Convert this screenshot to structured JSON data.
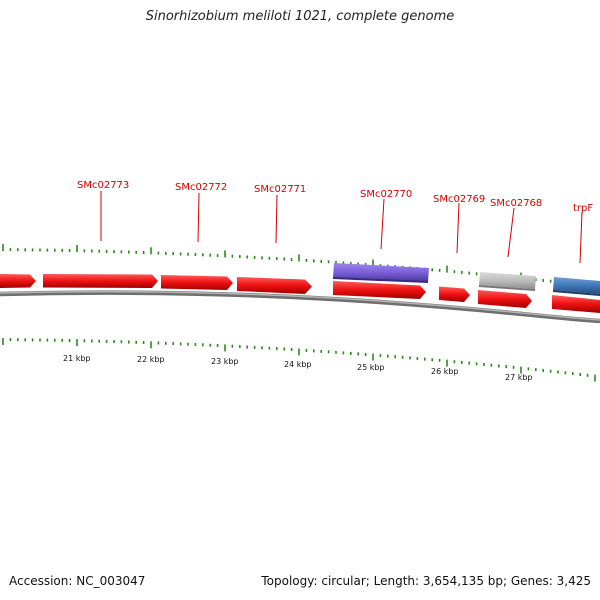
{
  "title": "Sinorhizobium meliloti 1021, complete genome",
  "footer": {
    "accession": "Accession: NC_003047",
    "summary": "Topology: circular; Length: 3,654,135 bp; Genes: 3,425"
  },
  "colors": {
    "gene_red": "#ee1111",
    "gene_purple": "#7a5fd8",
    "gene_gray": "#bdbdbd",
    "gene_blue": "#3f78b8",
    "label_red": "#d40000",
    "tick_green": "#2a8a1a",
    "backbone": "#8a8a8a"
  },
  "gene_labels": [
    {
      "id": "SMc02773",
      "text": "SMc02773"
    },
    {
      "id": "SMc02772",
      "text": "SMc02772"
    },
    {
      "id": "SMc02771",
      "text": "SMc02771"
    },
    {
      "id": "SMc02770",
      "text": "SMc02770"
    },
    {
      "id": "SMc02769",
      "text": "SMc02769"
    },
    {
      "id": "SMc02768",
      "text": "SMc02768"
    },
    {
      "id": "trpF",
      "text": "trpF"
    }
  ],
  "kbp_ticks": [
    "21 kbp",
    "22 kbp",
    "23 kbp",
    "24 kbp",
    "25 kbp",
    "26 kbp",
    "27 kbp"
  ]
}
